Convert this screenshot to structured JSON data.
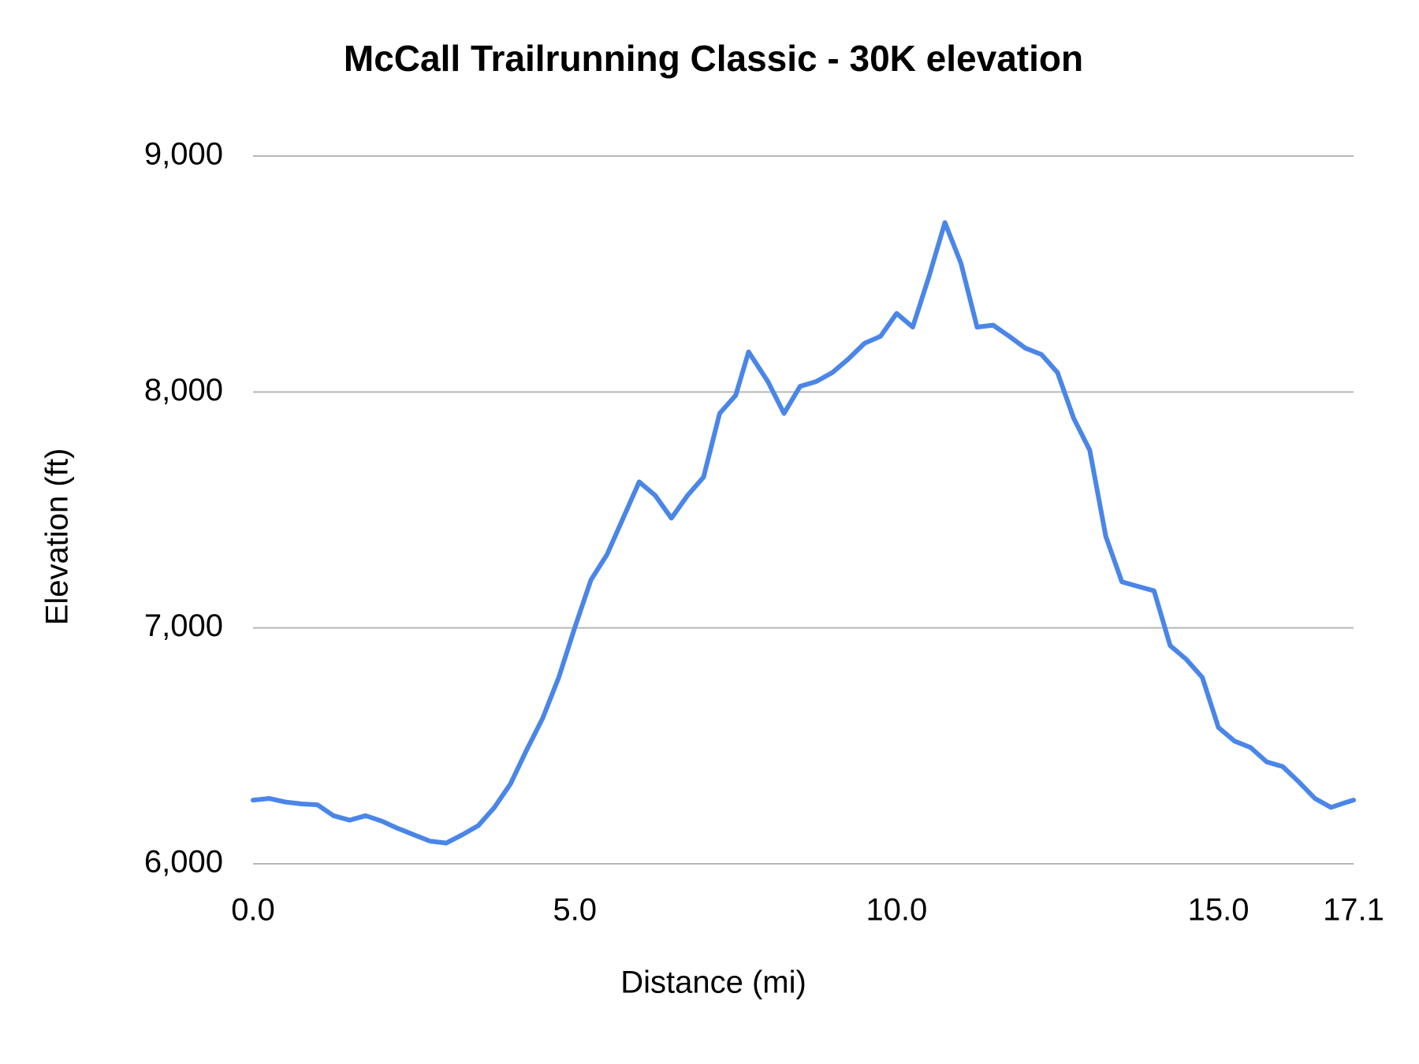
{
  "chart_data": {
    "type": "line",
    "title": "McCall Trailrunning  Classic - 30K elevation",
    "x_label": "Distance (mi)",
    "y_label": "Elevation (ft)",
    "x": [
      0,
      0.25,
      0.5,
      0.75,
      1.0,
      1.25,
      1.5,
      1.75,
      2.0,
      2.25,
      2.5,
      2.75,
      3.0,
      3.25,
      3.5,
      3.75,
      4.0,
      4.25,
      4.5,
      4.75,
      5.0,
      5.25,
      5.5,
      5.75,
      6.0,
      6.25,
      6.5,
      6.75,
      7.0,
      7.25,
      7.5,
      7.7,
      8.0,
      8.25,
      8.5,
      8.75,
      9.0,
      9.25,
      9.5,
      9.75,
      10.0,
      10.25,
      10.5,
      10.75,
      11.0,
      11.25,
      11.5,
      11.75,
      12.0,
      12.25,
      12.5,
      12.75,
      13.0,
      13.25,
      13.5,
      13.75,
      14.0,
      14.25,
      14.5,
      14.75,
      15.0,
      15.25,
      15.5,
      15.75,
      16.0,
      16.25,
      16.5,
      16.75,
      17.0,
      17.1
    ],
    "series": [
      {
        "name": "Elevation",
        "color": "#4a86e8",
        "values": [
          6270,
          6277,
          6262,
          6254,
          6250,
          6204,
          6185,
          6204,
          6181,
          6150,
          6123,
          6096,
          6088,
          6123,
          6162,
          6239,
          6339,
          6482,
          6617,
          6790,
          7002,
          7203,
          7311,
          7465,
          7619,
          7561,
          7465,
          7561,
          7639,
          7909,
          7986,
          8170,
          8044,
          7909,
          8024,
          8044,
          8082,
          8140,
          8206,
          8236,
          8333,
          8275,
          8487,
          8718,
          8545,
          8275,
          8283,
          8236,
          8186,
          8159,
          8082,
          7889,
          7754,
          7388,
          7195,
          7176,
          7157,
          6925,
          6867,
          6790,
          6578,
          6520,
          6493,
          6432,
          6412,
          6347,
          6277,
          6239,
          6262,
          6270
        ]
      }
    ],
    "xlim": [
      0,
      17.1
    ],
    "xticks": [
      {
        "value": 0,
        "label": "0.0"
      },
      {
        "value": 5,
        "label": "5.0"
      },
      {
        "value": 10,
        "label": "10.0"
      },
      {
        "value": 15,
        "label": "15.0"
      },
      17.1
    ],
    "ylim": [
      6000,
      9000
    ],
    "yticks": [
      {
        "value": 6000,
        "label": "6,000"
      },
      {
        "value": 7000,
        "label": "7,000"
      },
      {
        "value": 8000,
        "label": "8,000"
      },
      {
        "value": 9000,
        "label": "9,000"
      }
    ],
    "grid": true
  }
}
